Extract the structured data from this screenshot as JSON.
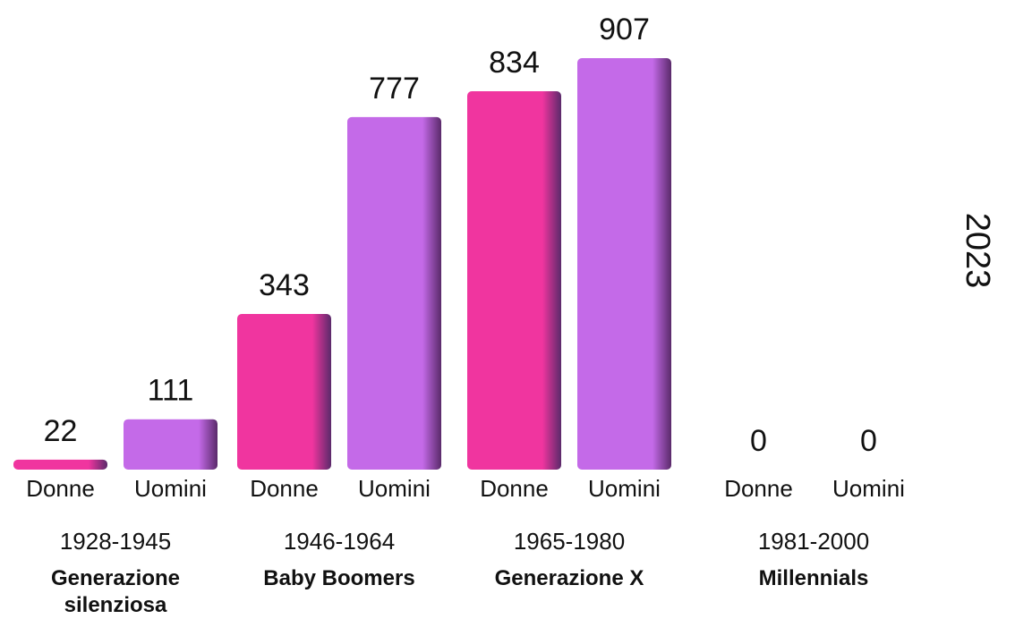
{
  "chart_data": {
    "type": "bar",
    "categories": [
      "1928-1945",
      "1946-1964",
      "1965-1980",
      "1981-2000"
    ],
    "category_names": [
      "Generazione silenziosa",
      "Baby Boomers",
      "Generazione X",
      "Millennials"
    ],
    "series": [
      {
        "name": "Donne",
        "color": "#f0359f",
        "values": [
          22,
          343,
          834,
          0
        ]
      },
      {
        "name": "Uomini",
        "color": "#c46ae8",
        "values": [
          111,
          777,
          907,
          0
        ]
      }
    ],
    "annotation": "2023"
  }
}
